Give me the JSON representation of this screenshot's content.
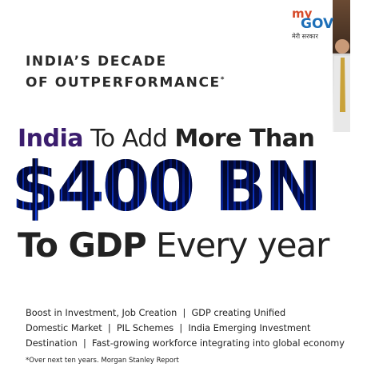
{
  "logo": {
    "top": "my",
    "bottom": "GOV",
    "tagline": "मेरी सरकार"
  },
  "header": {
    "lines": [
      "INDIA’S DECADE",
      "OF OUTPERFORMANCE"
    ],
    "mark": "*"
  },
  "headline": {
    "line1": [
      "India",
      "To Add",
      "More Than"
    ],
    "amount": "$400 BN",
    "line3": [
      "To GDP",
      "Every year"
    ]
  },
  "body": {
    "lines": [
      "Boost in Investment, Job Creation  |  GDP creating Unified",
      "Domestic Market  |  PIL Schemes  |  India Emerging Investment",
      "Destination  |  Fast-growing workforce integrating into global economy"
    ]
  },
  "footnote": "*Over next ten years. Morgan Stanley Report"
}
